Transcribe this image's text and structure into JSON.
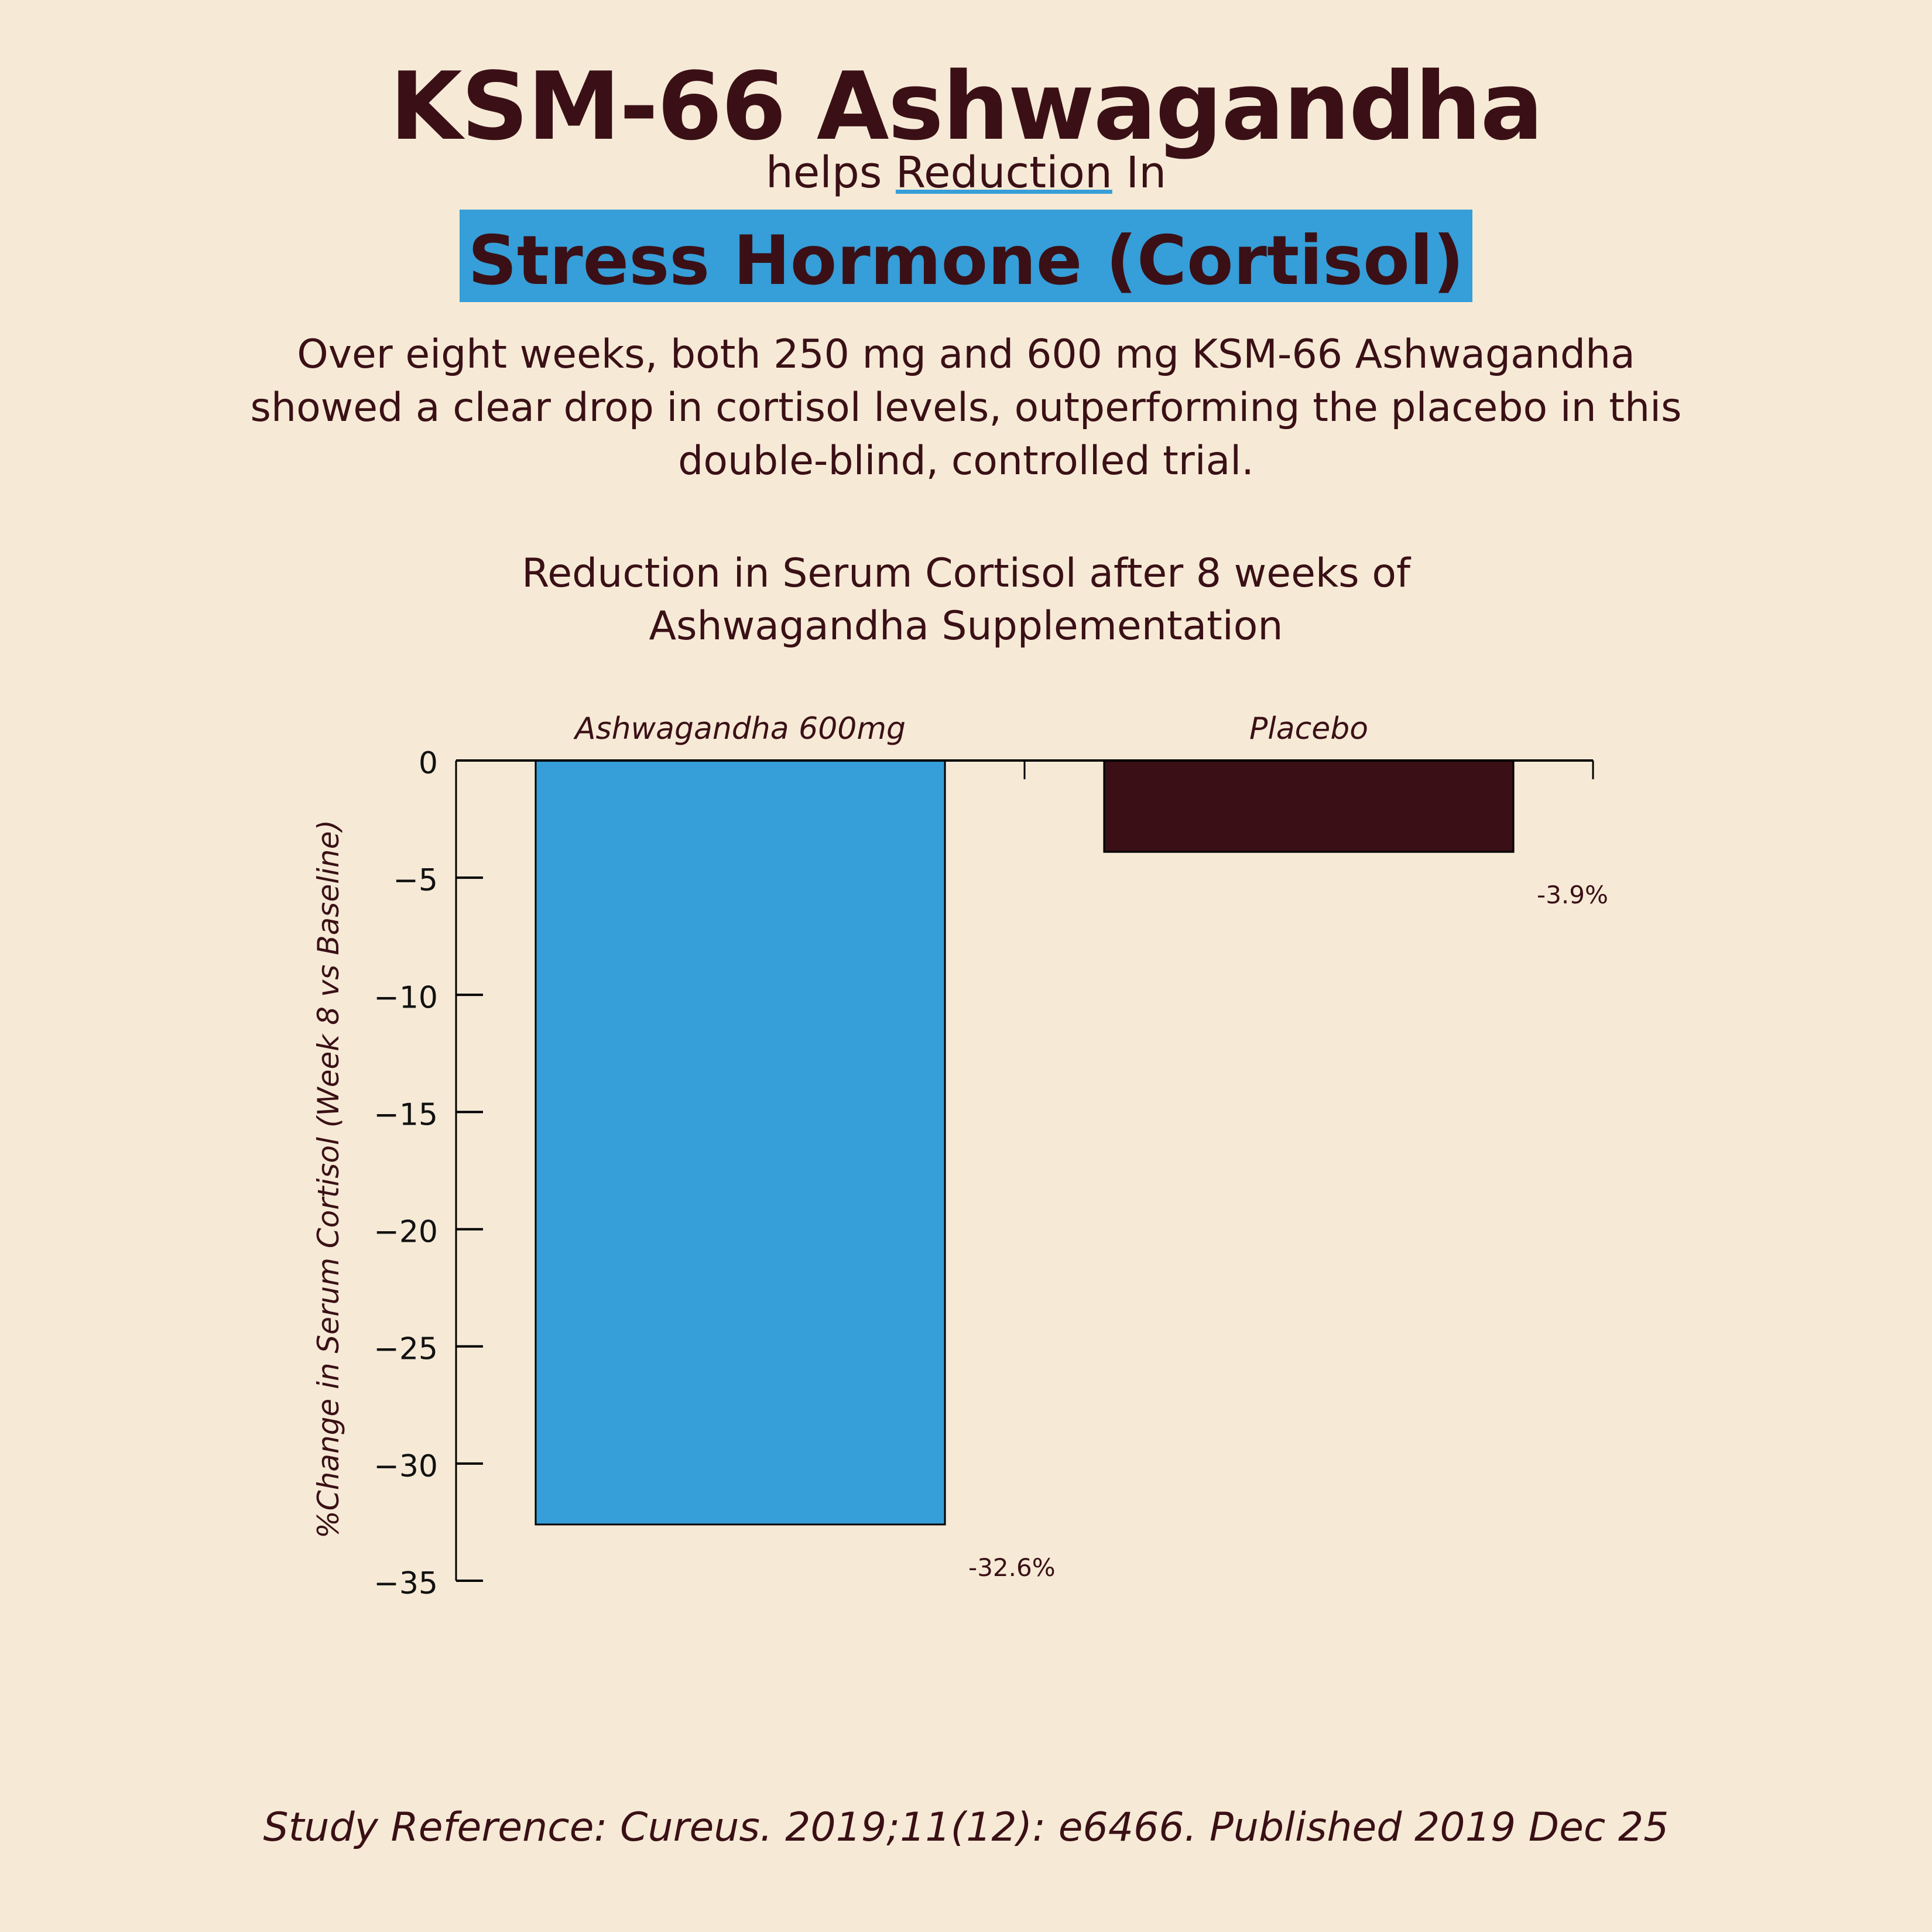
{
  "header": {
    "title": "KSM-66 Ashwagandha",
    "subtitle_pre": "helps ",
    "subtitle_link": "Reduction",
    "subtitle_post": " In",
    "highlight": "Stress Hormone (Cortisol)",
    "description": "Over eight weeks, both 250 mg and 600 mg KSM-66 Ashwagandha showed a clear drop in cortisol levels, outperforming the placebo in this double-blind, controlled trial."
  },
  "chart_data": {
    "type": "bar",
    "title": "Reduction in Serum Cortisol after 8 weeks of Ashwagandha Supplementation",
    "categories": [
      "Ashwagandha 600mg",
      "Placebo"
    ],
    "values": [
      -32.6,
      -3.9
    ],
    "data_labels": [
      "-32.6%",
      "-3.9%"
    ],
    "colors": [
      "#369ed8",
      "#3a0f16"
    ],
    "xlabel": "",
    "ylabel": "%Change in Serum Cortisol (Week 8 vs Baseline)",
    "ylim": [
      -35,
      0
    ],
    "yticks": [
      0,
      -5,
      -10,
      -15,
      -20,
      -25,
      -30,
      -35
    ],
    "category_axis_position": "top",
    "grid": false,
    "legend": "none"
  },
  "footer": {
    "reference": "Study Reference: Cureus. 2019;11(12): e6466. Published 2019 Dec 25"
  }
}
